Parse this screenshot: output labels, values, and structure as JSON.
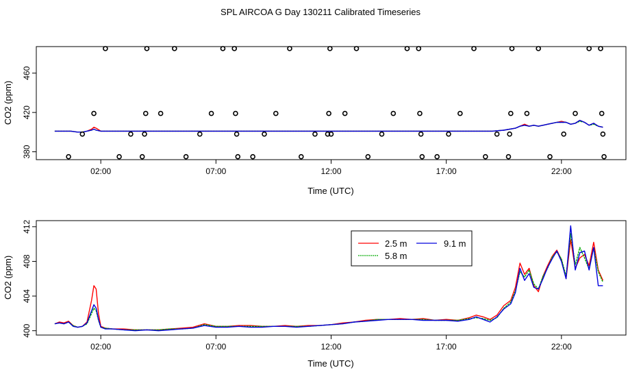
{
  "figure_title": "SPL AIRCOA G  Day 130211  Calibrated Timeseries",
  "chart_data": [
    {
      "type": "scatter",
      "title": "",
      "xlabel": "Time (UTC)",
      "ylabel": "CO2 (ppm)",
      "xlim": [
        -0.8,
        24.8
      ],
      "ylim": [
        372,
        487
      ],
      "xticks": [
        2,
        7,
        12,
        17,
        22
      ],
      "xtick_labels": [
        "02:00",
        "07:00",
        "12:00",
        "17:00",
        "22:00"
      ],
      "yticks": [
        380,
        420,
        460
      ],
      "ytick_labels": [
        "380",
        "420",
        "460"
      ],
      "points": [
        [
          0.6,
          375
        ],
        [
          1.2,
          398
        ],
        [
          1.7,
          419
        ],
        [
          2.2,
          485
        ],
        [
          2.8,
          375
        ],
        [
          3.3,
          398
        ],
        [
          3.8,
          375
        ],
        [
          3.9,
          398
        ],
        [
          3.95,
          419
        ],
        [
          4.0,
          485
        ],
        [
          4.6,
          419
        ],
        [
          5.2,
          485
        ],
        [
          5.7,
          375
        ],
        [
          6.3,
          398
        ],
        [
          6.8,
          419
        ],
        [
          7.3,
          485
        ],
        [
          7.8,
          485
        ],
        [
          7.85,
          419
        ],
        [
          7.9,
          398
        ],
        [
          7.95,
          375
        ],
        [
          8.6,
          375
        ],
        [
          9.1,
          398
        ],
        [
          9.6,
          419
        ],
        [
          10.2,
          485
        ],
        [
          10.7,
          375
        ],
        [
          11.3,
          398
        ],
        [
          11.85,
          398
        ],
        [
          11.9,
          419
        ],
        [
          11.95,
          485
        ],
        [
          12.0,
          398
        ],
        [
          12.6,
          419
        ],
        [
          13.1,
          485
        ],
        [
          13.6,
          375
        ],
        [
          14.2,
          398
        ],
        [
          14.7,
          419
        ],
        [
          15.3,
          485
        ],
        [
          15.8,
          485
        ],
        [
          15.85,
          419
        ],
        [
          15.9,
          398
        ],
        [
          15.95,
          375
        ],
        [
          16.6,
          375
        ],
        [
          17.1,
          398
        ],
        [
          17.6,
          419
        ],
        [
          18.2,
          485
        ],
        [
          18.7,
          375
        ],
        [
          19.2,
          398
        ],
        [
          19.7,
          375
        ],
        [
          19.75,
          398
        ],
        [
          19.8,
          419
        ],
        [
          19.85,
          485
        ],
        [
          20.5,
          419
        ],
        [
          21.0,
          485
        ],
        [
          21.5,
          375
        ],
        [
          22.1,
          398
        ],
        [
          22.6,
          419
        ],
        [
          23.2,
          485
        ],
        [
          23.7,
          485
        ],
        [
          23.75,
          419
        ],
        [
          23.8,
          398
        ],
        [
          23.85,
          375
        ]
      ],
      "series": [
        {
          "name": "2.5 m",
          "color": "#ff0000",
          "x": [
            0,
            0.3,
            0.5,
            0.7,
            1.0,
            1.2,
            1.4,
            1.6,
            1.7,
            1.8,
            2.0,
            2.3,
            3,
            4,
            5,
            6,
            7,
            8,
            9,
            10,
            11,
            12,
            13,
            14,
            15,
            16,
            17,
            18,
            19,
            19.5,
            20,
            20.2,
            20.4,
            20.6,
            20.8,
            21.0,
            21.2,
            21.4,
            21.6,
            21.8,
            22.0,
            22.2,
            22.4,
            22.6,
            22.8,
            23.0,
            23.2,
            23.4,
            23.6,
            23.8
          ],
          "y": [
            401,
            401,
            401,
            401,
            400,
            400,
            401,
            403,
            405,
            404,
            401,
            401,
            401,
            401,
            401,
            401,
            401,
            401,
            401,
            401,
            401,
            401,
            401,
            401,
            401,
            401,
            401,
            401,
            401,
            402,
            404,
            406,
            408,
            406,
            407,
            406,
            407,
            408,
            409,
            410,
            411,
            410,
            408,
            409,
            412,
            410,
            407,
            409,
            406,
            405
          ]
        },
        {
          "name": "5.8 m",
          "color": "#00aa00",
          "x": [
            0,
            0.3,
            0.5,
            0.7,
            1.0,
            1.2,
            1.4,
            1.6,
            1.7,
            1.8,
            2.0,
            2.3,
            3,
            4,
            5,
            6,
            7,
            8,
            9,
            10,
            11,
            12,
            13,
            14,
            15,
            16,
            17,
            18,
            19,
            19.5,
            20,
            20.2,
            20.4,
            20.6,
            20.8,
            21.0,
            21.2,
            21.4,
            21.6,
            21.8,
            22.0,
            22.2,
            22.4,
            22.6,
            22.8,
            23.0,
            23.2,
            23.4,
            23.6,
            23.8
          ],
          "y": [
            401,
            401,
            401,
            401,
            400,
            400,
            401,
            402,
            403,
            402,
            401,
            401,
            401,
            401,
            401,
            401,
            401,
            401,
            401,
            401,
            401,
            401,
            401,
            401,
            401,
            401,
            401,
            401,
            401,
            402,
            404,
            406,
            407,
            406,
            407,
            406,
            407,
            408,
            409,
            410,
            410,
            410,
            408,
            409,
            411,
            410,
            407,
            408,
            406,
            405
          ]
        },
        {
          "name": "9.1 m",
          "color": "#0000dd",
          "x": [
            0,
            0.3,
            0.5,
            0.7,
            1.0,
            1.2,
            1.4,
            1.6,
            1.7,
            1.8,
            2.0,
            2.3,
            3,
            4,
            5,
            6,
            7,
            8,
            9,
            10,
            11,
            12,
            13,
            14,
            15,
            16,
            17,
            18,
            19,
            19.5,
            20,
            20.2,
            20.4,
            20.6,
            20.8,
            21.0,
            21.2,
            21.4,
            21.6,
            21.8,
            22.0,
            22.2,
            22.4,
            22.6,
            22.8,
            23.0,
            23.2,
            23.4,
            23.6,
            23.8
          ],
          "y": [
            401,
            401,
            401,
            401,
            400,
            400,
            401,
            402,
            403,
            402,
            401,
            401,
            401,
            401,
            401,
            401,
            401,
            401,
            401,
            401,
            401,
            401,
            401,
            401,
            401,
            401,
            401,
            401,
            401,
            402,
            404,
            406,
            407,
            406,
            407,
            406,
            407,
            408,
            409,
            410,
            410,
            410,
            408,
            409,
            412,
            410,
            407,
            409,
            406,
            405
          ]
        }
      ]
    },
    {
      "type": "line",
      "title": "",
      "xlabel": "Time (UTC)",
      "ylabel": "CO2 (ppm)",
      "xlim": [
        -0.8,
        24.8
      ],
      "ylim": [
        399.5,
        412.7
      ],
      "xticks": [
        2,
        7,
        12,
        17,
        22
      ],
      "xtick_labels": [
        "02:00",
        "07:00",
        "12:00",
        "17:00",
        "22:00"
      ],
      "yticks": [
        400,
        404,
        408,
        412
      ],
      "ytick_labels": [
        "400",
        "404",
        "408",
        "412"
      ],
      "legend": [
        "2.5 m",
        "9.1 m",
        "5.8 m"
      ],
      "legend_position": "top-right",
      "series": [
        {
          "name": "2.5 m",
          "color": "#ff0000",
          "x": [
            0,
            0.2,
            0.4,
            0.6,
            0.8,
            1.0,
            1.2,
            1.4,
            1.6,
            1.7,
            1.8,
            1.9,
            2.0,
            2.2,
            2.5,
            3,
            3.5,
            4,
            4.5,
            5,
            5.5,
            6,
            6.5,
            7,
            7.5,
            8,
            8.5,
            9,
            9.5,
            10,
            10.5,
            11,
            11.5,
            12,
            12.5,
            13,
            13.5,
            14,
            14.5,
            15,
            15.5,
            16,
            16.5,
            17,
            17.5,
            18,
            18.3,
            18.6,
            18.9,
            19.2,
            19.5,
            19.8,
            20.0,
            20.2,
            20.4,
            20.6,
            20.8,
            21.0,
            21.2,
            21.4,
            21.6,
            21.8,
            22.0,
            22.2,
            22.4,
            22.6,
            22.8,
            23.0,
            23.2,
            23.4,
            23.6,
            23.8
          ],
          "y": [
            400.8,
            401.0,
            400.9,
            401.1,
            400.6,
            400.4,
            400.5,
            401.0,
            403.5,
            405.2,
            404.8,
            402.0,
            400.5,
            400.3,
            400.2,
            400.2,
            400.1,
            400.1,
            400.1,
            400.2,
            400.3,
            400.4,
            400.8,
            400.5,
            400.5,
            400.6,
            400.6,
            400.5,
            400.5,
            400.6,
            400.5,
            400.6,
            400.6,
            400.7,
            400.9,
            401.0,
            401.2,
            401.3,
            401.3,
            401.4,
            401.3,
            401.4,
            401.2,
            401.3,
            401.2,
            401.5,
            401.8,
            401.6,
            401.3,
            401.8,
            402.9,
            403.5,
            405.0,
            407.8,
            406.5,
            407.2,
            405.2,
            404.5,
            406.3,
            407.5,
            408.6,
            409.3,
            408.2,
            406.0,
            410.5,
            407.2,
            408.4,
            408.8,
            407.5,
            410.2,
            407.0,
            405.8
          ]
        },
        {
          "name": "5.8 m",
          "color": "#00aa00",
          "x": [
            0,
            0.2,
            0.4,
            0.6,
            0.8,
            1.0,
            1.2,
            1.4,
            1.6,
            1.7,
            1.8,
            1.9,
            2.0,
            2.2,
            2.5,
            3,
            3.5,
            4,
            4.5,
            5,
            5.5,
            6,
            6.5,
            7,
            7.5,
            8,
            8.5,
            9,
            9.5,
            10,
            10.5,
            11,
            11.5,
            12,
            12.5,
            13,
            13.5,
            14,
            14.5,
            15,
            15.5,
            16,
            16.5,
            17,
            17.5,
            18,
            18.3,
            18.6,
            18.9,
            19.2,
            19.5,
            19.8,
            20.0,
            20.2,
            20.4,
            20.6,
            20.8,
            21.0,
            21.2,
            21.4,
            21.6,
            21.8,
            22.0,
            22.2,
            22.4,
            22.6,
            22.8,
            23.0,
            23.2,
            23.4,
            23.6,
            23.8
          ],
          "y": [
            400.8,
            400.9,
            400.8,
            401.0,
            400.6,
            400.4,
            400.5,
            400.8,
            402.0,
            402.6,
            402.3,
            401.2,
            400.4,
            400.3,
            400.2,
            400.1,
            400.1,
            400.1,
            400.1,
            400.2,
            400.2,
            400.3,
            400.7,
            400.5,
            400.5,
            400.5,
            400.5,
            400.5,
            400.5,
            400.5,
            400.5,
            400.5,
            400.6,
            400.7,
            400.8,
            401.0,
            401.1,
            401.3,
            401.3,
            401.3,
            401.3,
            401.3,
            401.2,
            401.2,
            401.2,
            401.4,
            401.5,
            401.4,
            401.2,
            401.5,
            402.6,
            403.3,
            404.6,
            406.8,
            406.2,
            407.0,
            405.4,
            404.8,
            406.3,
            407.2,
            408.5,
            409.1,
            408.3,
            406.3,
            411.2,
            407.6,
            409.6,
            408.4,
            407.1,
            409.6,
            406.8,
            405.6
          ]
        },
        {
          "name": "9.1 m",
          "color": "#0000dd",
          "x": [
            0,
            0.2,
            0.4,
            0.6,
            0.8,
            1.0,
            1.2,
            1.4,
            1.6,
            1.7,
            1.8,
            1.9,
            2.0,
            2.2,
            2.5,
            3,
            3.5,
            4,
            4.5,
            5,
            5.5,
            6,
            6.5,
            7,
            7.5,
            8,
            8.5,
            9,
            9.5,
            10,
            10.5,
            11,
            11.5,
            12,
            12.5,
            13,
            13.5,
            14,
            14.5,
            15,
            15.5,
            16,
            16.5,
            17,
            17.5,
            18,
            18.3,
            18.6,
            18.9,
            19.2,
            19.5,
            19.8,
            20.0,
            20.2,
            20.4,
            20.6,
            20.8,
            21.0,
            21.2,
            21.4,
            21.6,
            21.8,
            22.0,
            22.2,
            22.4,
            22.6,
            22.8,
            23.0,
            23.2,
            23.4,
            23.6,
            23.8
          ],
          "y": [
            400.8,
            400.9,
            400.8,
            401.0,
            400.5,
            400.4,
            400.5,
            400.9,
            402.3,
            403.0,
            402.6,
            401.3,
            400.4,
            400.2,
            400.2,
            400.1,
            400.0,
            400.1,
            400.0,
            400.1,
            400.2,
            400.3,
            400.6,
            400.4,
            400.4,
            400.5,
            400.4,
            400.4,
            400.5,
            400.5,
            400.4,
            400.5,
            400.6,
            400.7,
            400.8,
            401.0,
            401.1,
            401.2,
            401.3,
            401.3,
            401.3,
            401.2,
            401.2,
            401.2,
            401.1,
            401.3,
            401.6,
            401.3,
            401.0,
            401.6,
            402.5,
            403.1,
            404.4,
            407.2,
            405.8,
            406.6,
            405.0,
            404.8,
            406.0,
            407.3,
            408.3,
            409.2,
            408.0,
            406.0,
            412.1,
            407.0,
            409.0,
            409.2,
            407.0,
            409.6,
            405.2,
            405.2
          ]
        }
      ]
    }
  ]
}
